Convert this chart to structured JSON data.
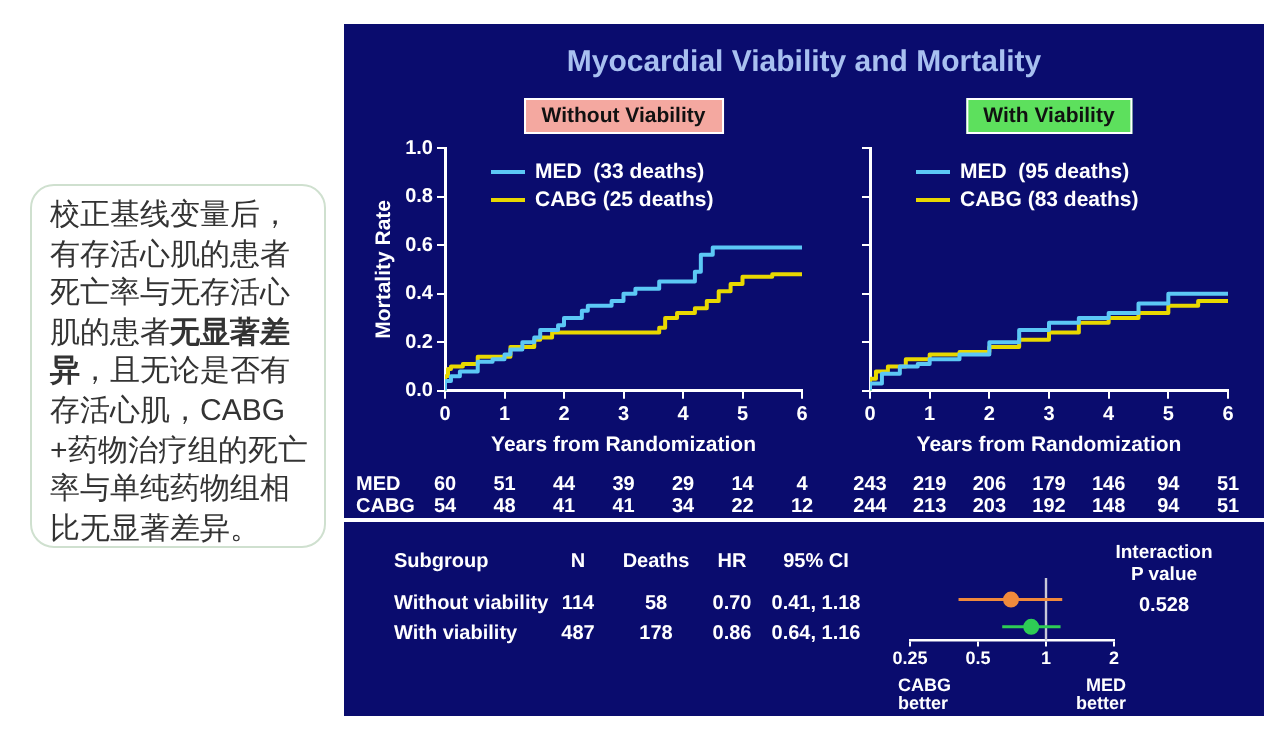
{
  "chart_data": [
    {
      "type": "other",
      "annotations": [
        "校正基线变量后，有存活心肌的患者死亡率与无存活心肌的患者",
        "无显著差异",
        "，且无论是否有存活心肌，CABG+药物治疗组的死亡率与单纯药物组相比无显著差异。"
      ]
    },
    {
      "type": "step",
      "title": "Myocardial Viability and Mortality",
      "subtitle": "Without Viability",
      "xlabel": "Years from Randomization",
      "ylabel": "Mortality Rate",
      "xlim": [
        0,
        6
      ],
      "xticks": [
        0,
        1,
        2,
        3,
        4,
        5,
        6
      ],
      "ylim": [
        0,
        1
      ],
      "yticks": [
        {
          "value": 0,
          "label": "0.0"
        },
        {
          "value": 0.2,
          "label": "0.2"
        },
        {
          "value": 0.4,
          "label": "0.4"
        },
        {
          "value": 0.6,
          "label": "0.6"
        },
        {
          "value": 0.8,
          "label": "0.8"
        },
        {
          "value": 1,
          "label": "1.0"
        }
      ],
      "grid": false,
      "legend": "top left",
      "marker": "none",
      "line_style": "solid",
      "series": [
        {
          "name": "MED  (33 deaths)",
          "color": "#5cc8f5",
          "x": [
            0,
            0.1,
            0.25,
            0.55,
            0.8,
            1.0,
            1.1,
            1.3,
            1.5,
            1.6,
            1.9,
            2.0,
            2.3,
            2.4,
            2.8,
            3.0,
            3.2,
            3.6,
            4.2,
            4.3,
            4.5,
            5.0,
            6.0
          ],
          "values": [
            0,
            0.04,
            0.06,
            0.08,
            0.12,
            0.13,
            0.15,
            0.17,
            0.2,
            0.22,
            0.25,
            0.27,
            0.3,
            0.33,
            0.35,
            0.37,
            0.4,
            0.42,
            0.45,
            0.49,
            0.56,
            0.59,
            0.59
          ]
        },
        {
          "name": "CABG (25 deaths)",
          "color": "#e8d800",
          "x": [
            0,
            0.05,
            0.1,
            0.3,
            0.55,
            1.1,
            1.5,
            1.6,
            1.8,
            2.0,
            3.6,
            3.7,
            3.9,
            4.2,
            4.4,
            4.6,
            4.8,
            5.0,
            5.5,
            6.0
          ],
          "values": [
            0,
            0.06,
            0.09,
            0.1,
            0.11,
            0.14,
            0.18,
            0.21,
            0.22,
            0.24,
            0.24,
            0.26,
            0.3,
            0.32,
            0.34,
            0.37,
            0.41,
            0.44,
            0.47,
            0.48
          ]
        }
      ],
      "annotations": [
        "MED 60 51 44 39 29 14 4",
        "CABG 54 48 41 41 34 22 12"
      ]
    },
    {
      "type": "step",
      "subtitle": "With Viability",
      "xlabel": "Years from Randomization",
      "xlim": [
        0,
        6
      ],
      "xticks": [
        0,
        1,
        2,
        3,
        4,
        5,
        6
      ],
      "ylim": [
        0,
        1
      ],
      "yticks": [
        {
          "value": 0,
          "label": null
        },
        {
          "value": 0.2,
          "label": null
        },
        {
          "value": 0.4,
          "label": null
        },
        {
          "value": 0.6,
          "label": null
        },
        {
          "value": 0.8,
          "label": null
        },
        {
          "value": 1,
          "label": null
        }
      ],
      "tick_labels": "x",
      "grid": false,
      "legend": "top left",
      "marker": "none",
      "line_style": "solid",
      "series": [
        {
          "name": "MED  (95 deaths)",
          "color": "#5cc8f5",
          "x": [
            0,
            0.2,
            0.5,
            0.8,
            1.0,
            1.5,
            2.0,
            2.5,
            3.0,
            3.5,
            4.0,
            4.5,
            5.0,
            5.4,
            6.0
          ],
          "values": [
            0,
            0.03,
            0.07,
            0.1,
            0.11,
            0.13,
            0.15,
            0.2,
            0.25,
            0.28,
            0.3,
            0.32,
            0.36,
            0.4,
            0.4
          ]
        },
        {
          "name": "CABG (83 deaths)",
          "color": "#e8d800",
          "x": [
            0,
            0.1,
            0.3,
            0.6,
            1.0,
            1.5,
            2.0,
            2.5,
            3.0,
            3.5,
            4.0,
            4.5,
            5.0,
            5.5,
            6.0
          ],
          "values": [
            0,
            0.05,
            0.08,
            0.1,
            0.13,
            0.15,
            0.16,
            0.18,
            0.21,
            0.24,
            0.28,
            0.3,
            0.32,
            0.35,
            0.37
          ]
        }
      ],
      "annotations": [
        "243 219 206 179 146 94 51",
        "244 213 203 192 148 94 51"
      ]
    },
    {
      "type": "scatter",
      "orientation": "horizontal",
      "categories": [
        "Without viability",
        "With viability"
      ],
      "xlim": [
        0.25,
        2
      ],
      "xticks": [
        0.25,
        0.5,
        1,
        2
      ],
      "log": "x",
      "tick_labels": "x",
      "grid": false,
      "legend": false,
      "marker": "circle",
      "series": [
        {
          "color": "#f08a3c",
          "values": [
            0.7,
            null
          ],
          "errors": [
            [
              0.41,
              1.18
            ],
            null
          ]
        },
        {
          "color": "#2ecc55",
          "values": [
            null,
            0.86
          ],
          "errors": [
            null,
            [
              0.64,
              1.16
            ]
          ]
        }
      ],
      "ref_lines": [
        {
          "axis": "x",
          "value": 1,
          "color": "#c8c8d8"
        }
      ],
      "annotations": [
        "Subgroup",
        "N",
        "Deaths",
        "HR",
        "95% CI",
        "114",
        "58",
        "0.70",
        "0.41, 1.18",
        "487",
        "178",
        "0.86",
        "0.64, 1.16",
        "Interaction P value",
        "0.528",
        "CABG better",
        "MED better"
      ]
    }
  ]
}
